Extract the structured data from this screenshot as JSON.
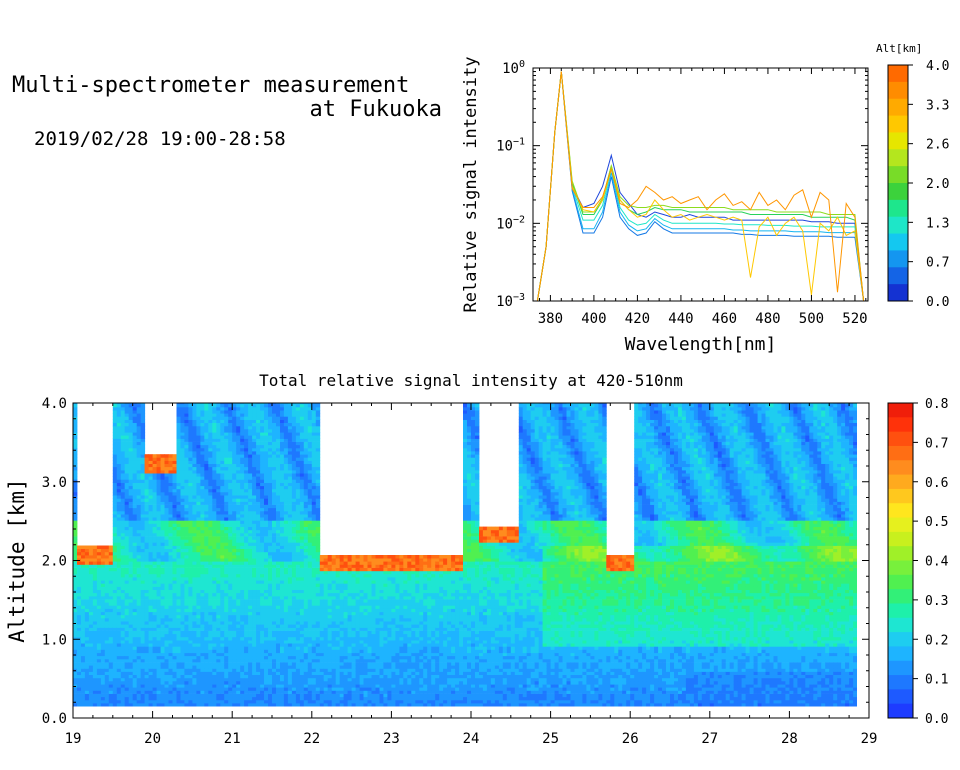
{
  "header": {
    "title_line1": "Multi-spectrometer measurement",
    "title_line2": "at Fukuoka",
    "date_range": "2019/02/28 19:00-28:58"
  },
  "chart_data": [
    {
      "type": "line",
      "xlabel": "Wavelength[nm]",
      "ylabel": "Relative signal intensity",
      "xlim": [
        372,
        526
      ],
      "ylim": [
        0.001,
        1
      ],
      "yscale": "log",
      "x_ticks": [
        "380",
        "400",
        "420",
        "440",
        "460",
        "480",
        "500",
        "520"
      ],
      "y_ticks": [
        {
          "base": "10",
          "exp": "0"
        },
        {
          "base": "10",
          "exp": "−1"
        },
        {
          "base": "10",
          "exp": "−2"
        },
        {
          "base": "10",
          "exp": "−3"
        }
      ],
      "colorbar": {
        "title": "Alt[km]",
        "tick_labels": [
          "4.0",
          "3.3",
          "2.6",
          "2.0",
          "1.3",
          "0.7",
          "0.0"
        ],
        "colors": [
          "#ff6a00",
          "#ff8c00",
          "#ffaa00",
          "#ffc800",
          "#e6e600",
          "#b4e61e",
          "#78dc28",
          "#3cd23c",
          "#1ee68c",
          "#1ee6c8",
          "#14c8f0",
          "#1496f0",
          "#1464e6",
          "#1432d2"
        ]
      },
      "x": [
        374,
        378,
        382,
        385,
        390,
        395,
        400,
        404,
        408,
        412,
        416,
        420,
        424,
        428,
        432,
        436,
        440,
        444,
        448,
        452,
        456,
        460,
        464,
        468,
        472,
        476,
        480,
        484,
        488,
        492,
        496,
        500,
        504,
        508,
        512,
        516,
        520,
        524
      ],
      "series": [
        {
          "color": "#1e46dc",
          "values": [
            0.001,
            0.005,
            0.15,
            0.9,
            0.03,
            0.016,
            0.018,
            0.03,
            0.075,
            0.025,
            0.018,
            0.013,
            0.012,
            0.014,
            0.013,
            0.012,
            0.012,
            0.013,
            0.012,
            0.012,
            0.012,
            0.012,
            0.011,
            0.011,
            0.011,
            0.011,
            0.011,
            0.011,
            0.011,
            0.011,
            0.011,
            0.0105,
            0.0105,
            0.0105,
            0.01,
            0.01,
            0.01,
            0.001
          ]
        },
        {
          "color": "#1478e6",
          "values": [
            0.001,
            0.005,
            0.15,
            0.9,
            0.026,
            0.0075,
            0.0075,
            0.012,
            0.04,
            0.012,
            0.0085,
            0.007,
            0.0075,
            0.0105,
            0.0085,
            0.0075,
            0.0075,
            0.0075,
            0.0075,
            0.0075,
            0.0075,
            0.0075,
            0.0075,
            0.0072,
            0.0072,
            0.007,
            0.007,
            0.007,
            0.007,
            0.0068,
            0.0068,
            0.0068,
            0.0068,
            0.0068,
            0.0066,
            0.0066,
            0.0066,
            0.001
          ]
        },
        {
          "color": "#14b4f0",
          "values": [
            0.001,
            0.005,
            0.15,
            0.9,
            0.028,
            0.0085,
            0.0085,
            0.014,
            0.045,
            0.014,
            0.0095,
            0.008,
            0.0085,
            0.0115,
            0.0095,
            0.0085,
            0.0085,
            0.0085,
            0.0085,
            0.0085,
            0.0085,
            0.0085,
            0.0082,
            0.0082,
            0.008,
            0.008,
            0.008,
            0.008,
            0.008,
            0.0078,
            0.0078,
            0.0078,
            0.0078,
            0.0076,
            0.0076,
            0.0076,
            0.0076,
            0.001
          ]
        },
        {
          "color": "#1ee6c8",
          "values": [
            0.001,
            0.005,
            0.15,
            0.9,
            0.03,
            0.011,
            0.011,
            0.017,
            0.05,
            0.016,
            0.011,
            0.0095,
            0.01,
            0.013,
            0.011,
            0.01,
            0.01,
            0.01,
            0.01,
            0.01,
            0.01,
            0.0098,
            0.0098,
            0.0096,
            0.0096,
            0.0096,
            0.0094,
            0.0094,
            0.0094,
            0.0092,
            0.0092,
            0.0092,
            0.009,
            0.009,
            0.009,
            0.009,
            0.009,
            0.001
          ]
        },
        {
          "color": "#28d25a",
          "values": [
            0.001,
            0.005,
            0.15,
            0.9,
            0.033,
            0.013,
            0.013,
            0.02,
            0.055,
            0.02,
            0.015,
            0.013,
            0.014,
            0.016,
            0.015,
            0.015,
            0.015,
            0.014,
            0.014,
            0.014,
            0.014,
            0.014,
            0.014,
            0.014,
            0.013,
            0.013,
            0.013,
            0.013,
            0.013,
            0.013,
            0.013,
            0.012,
            0.012,
            0.012,
            0.012,
            0.012,
            0.011,
            0.001
          ]
        },
        {
          "color": "#8cdc1e",
          "values": [
            0.001,
            0.005,
            0.15,
            0.9,
            0.035,
            0.014,
            0.014,
            0.021,
            0.055,
            0.022,
            0.017,
            0.016,
            0.016,
            0.017,
            0.017,
            0.016,
            0.016,
            0.016,
            0.016,
            0.016,
            0.016,
            0.016,
            0.015,
            0.015,
            0.015,
            0.015,
            0.015,
            0.014,
            0.014,
            0.014,
            0.014,
            0.014,
            0.014,
            0.013,
            0.013,
            0.013,
            0.013,
            0.001
          ]
        },
        {
          "color": "#ffc800",
          "values": [
            0.001,
            0.005,
            0.15,
            0.9,
            0.03,
            0.015,
            0.014,
            0.02,
            0.05,
            0.02,
            0.015,
            0.012,
            0.013,
            0.02,
            0.015,
            0.012,
            0.013,
            0.011,
            0.012,
            0.013,
            0.012,
            0.011,
            0.012,
            0.011,
            0.002,
            0.009,
            0.012,
            0.007,
            0.01,
            0.012,
            0.008,
            0.0012,
            0.01,
            0.008,
            0.012,
            0.007,
            0.008,
            0.001
          ]
        },
        {
          "color": "#ff9600",
          "values": [
            0.001,
            0.005,
            0.15,
            0.9,
            0.028,
            0.016,
            0.016,
            0.022,
            0.05,
            0.018,
            0.016,
            0.02,
            0.03,
            0.025,
            0.02,
            0.022,
            0.018,
            0.02,
            0.022,
            0.015,
            0.02,
            0.024,
            0.017,
            0.019,
            0.015,
            0.025,
            0.017,
            0.02,
            0.015,
            0.023,
            0.027,
            0.012,
            0.025,
            0.02,
            0.0013,
            0.018,
            0.012,
            0.001
          ]
        }
      ]
    },
    {
      "type": "heatmap",
      "title": "Total relative signal intensity at 420-510nm",
      "ylabel": "Altitude [km]",
      "xlabel": "",
      "xlim": [
        19,
        29
      ],
      "ylim": [
        0,
        4
      ],
      "x_tick_labels": [
        "19",
        "20",
        "21",
        "22",
        "23",
        "24",
        "25",
        "26",
        "27",
        "28",
        "29"
      ],
      "y_tick_labels": [
        "0.0",
        "1.0",
        "2.0",
        "3.0",
        "4.0"
      ],
      "colorbar": {
        "tick_labels": [
          "0.0",
          "0.1",
          "0.2",
          "0.3",
          "0.4",
          "0.5",
          "0.6",
          "0.7",
          "0.8"
        ],
        "range": [
          0,
          0.8
        ],
        "colors": [
          "#1e3cff",
          "#1e5aff",
          "#1e78ff",
          "#1e96ff",
          "#1eb4ff",
          "#1ecdf0",
          "#1ee6d2",
          "#1ef0aa",
          "#32f078",
          "#50f050",
          "#78f03c",
          "#a0f028",
          "#c8f01e",
          "#e6f01e",
          "#ffe61e",
          "#ffc81e",
          "#ffaa1e",
          "#ff8c1e",
          "#ff6e14",
          "#ff500f",
          "#ff320a",
          "#f01e0a"
        ]
      },
      "cloud_gaps": [
        {
          "t0": 19.05,
          "t1": 19.5,
          "base_km": 2.05
        },
        {
          "t0": 19.9,
          "t1": 20.3,
          "base_km": 3.2
        },
        {
          "t0": 22.1,
          "t1": 23.9,
          "base_km": 1.95
        },
        {
          "t0": 24.1,
          "t1": 24.6,
          "base_km": 2.3
        },
        {
          "t0": 25.7,
          "t1": 26.05,
          "base_km": 1.95
        }
      ]
    }
  ]
}
